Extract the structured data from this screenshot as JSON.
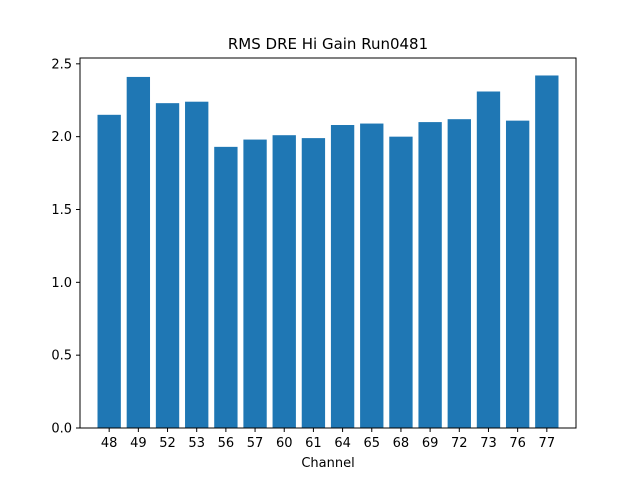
{
  "chart_data": {
    "type": "bar",
    "title": "RMS DRE Hi Gain Run0481",
    "xlabel": "Channel",
    "ylabel": "",
    "categories": [
      "48",
      "49",
      "52",
      "53",
      "56",
      "57",
      "60",
      "61",
      "64",
      "65",
      "68",
      "69",
      "72",
      "73",
      "76",
      "77"
    ],
    "values": [
      2.15,
      2.41,
      2.23,
      2.24,
      1.93,
      1.98,
      2.01,
      1.99,
      2.08,
      2.09,
      2.0,
      2.1,
      2.12,
      2.31,
      2.11,
      2.42
    ],
    "ylim": [
      0,
      2.54
    ],
    "yticks": [
      "0.0",
      "0.5",
      "1.0",
      "1.5",
      "2.0",
      "2.5"
    ],
    "grid": false,
    "colors": {
      "bar": "#1f77b4",
      "axis": "#000000",
      "background": "#ffffff"
    }
  }
}
